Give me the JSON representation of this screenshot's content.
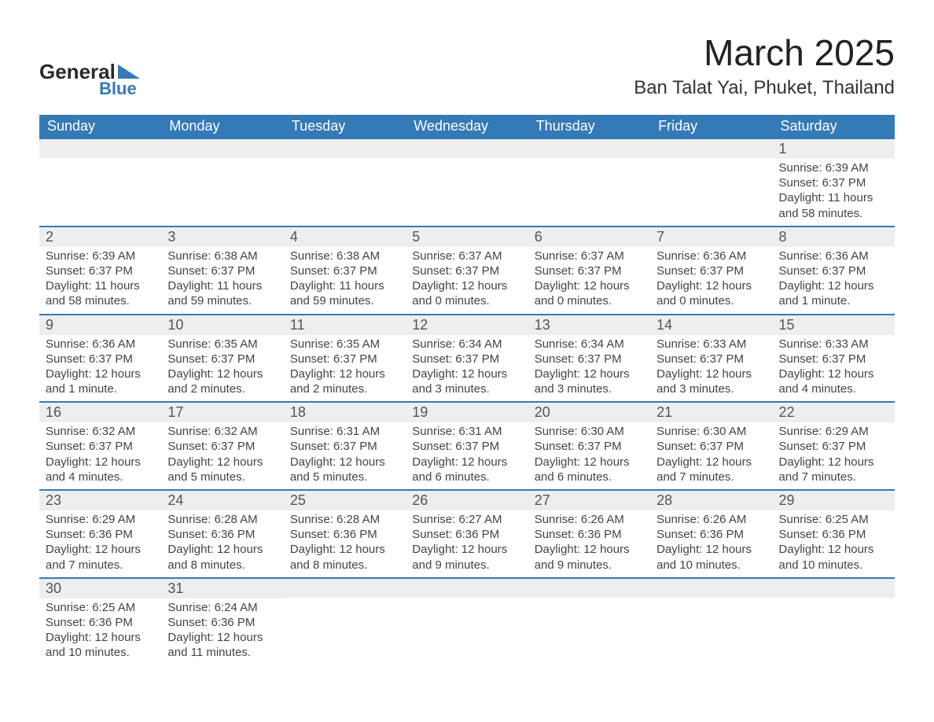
{
  "logo": {
    "top_text": "General",
    "bottom_text": "Blue"
  },
  "title": "March 2025",
  "location": "Ban Talat Yai, Phuket, Thailand",
  "colors": {
    "header_blue": "#347ab7",
    "row_divider": "#347ab7",
    "daynum_bg": "#eeeeee",
    "text": "#444444",
    "logo_dark": "#2a2a2a"
  },
  "font": {
    "family": "Arial",
    "title_size_pt": 34,
    "location_size_pt": 18,
    "header_size_pt": 14,
    "body_size_pt": 11
  },
  "day_headers": [
    "Sunday",
    "Monday",
    "Tuesday",
    "Wednesday",
    "Thursday",
    "Friday",
    "Saturday"
  ],
  "weeks": [
    [
      {
        "n": "",
        "sunrise": "",
        "sunset": "",
        "daylight": ""
      },
      {
        "n": "",
        "sunrise": "",
        "sunset": "",
        "daylight": ""
      },
      {
        "n": "",
        "sunrise": "",
        "sunset": "",
        "daylight": ""
      },
      {
        "n": "",
        "sunrise": "",
        "sunset": "",
        "daylight": ""
      },
      {
        "n": "",
        "sunrise": "",
        "sunset": "",
        "daylight": ""
      },
      {
        "n": "",
        "sunrise": "",
        "sunset": "",
        "daylight": ""
      },
      {
        "n": "1",
        "sunrise": "6:39 AM",
        "sunset": "6:37 PM",
        "daylight": "11 hours and 58 minutes."
      }
    ],
    [
      {
        "n": "2",
        "sunrise": "6:39 AM",
        "sunset": "6:37 PM",
        "daylight": "11 hours and 58 minutes."
      },
      {
        "n": "3",
        "sunrise": "6:38 AM",
        "sunset": "6:37 PM",
        "daylight": "11 hours and 59 minutes."
      },
      {
        "n": "4",
        "sunrise": "6:38 AM",
        "sunset": "6:37 PM",
        "daylight": "11 hours and 59 minutes."
      },
      {
        "n": "5",
        "sunrise": "6:37 AM",
        "sunset": "6:37 PM",
        "daylight": "12 hours and 0 minutes."
      },
      {
        "n": "6",
        "sunrise": "6:37 AM",
        "sunset": "6:37 PM",
        "daylight": "12 hours and 0 minutes."
      },
      {
        "n": "7",
        "sunrise": "6:36 AM",
        "sunset": "6:37 PM",
        "daylight": "12 hours and 0 minutes."
      },
      {
        "n": "8",
        "sunrise": "6:36 AM",
        "sunset": "6:37 PM",
        "daylight": "12 hours and 1 minute."
      }
    ],
    [
      {
        "n": "9",
        "sunrise": "6:36 AM",
        "sunset": "6:37 PM",
        "daylight": "12 hours and 1 minute."
      },
      {
        "n": "10",
        "sunrise": "6:35 AM",
        "sunset": "6:37 PM",
        "daylight": "12 hours and 2 minutes."
      },
      {
        "n": "11",
        "sunrise": "6:35 AM",
        "sunset": "6:37 PM",
        "daylight": "12 hours and 2 minutes."
      },
      {
        "n": "12",
        "sunrise": "6:34 AM",
        "sunset": "6:37 PM",
        "daylight": "12 hours and 3 minutes."
      },
      {
        "n": "13",
        "sunrise": "6:34 AM",
        "sunset": "6:37 PM",
        "daylight": "12 hours and 3 minutes."
      },
      {
        "n": "14",
        "sunrise": "6:33 AM",
        "sunset": "6:37 PM",
        "daylight": "12 hours and 3 minutes."
      },
      {
        "n": "15",
        "sunrise": "6:33 AM",
        "sunset": "6:37 PM",
        "daylight": "12 hours and 4 minutes."
      }
    ],
    [
      {
        "n": "16",
        "sunrise": "6:32 AM",
        "sunset": "6:37 PM",
        "daylight": "12 hours and 4 minutes."
      },
      {
        "n": "17",
        "sunrise": "6:32 AM",
        "sunset": "6:37 PM",
        "daylight": "12 hours and 5 minutes."
      },
      {
        "n": "18",
        "sunrise": "6:31 AM",
        "sunset": "6:37 PM",
        "daylight": "12 hours and 5 minutes."
      },
      {
        "n": "19",
        "sunrise": "6:31 AM",
        "sunset": "6:37 PM",
        "daylight": "12 hours and 6 minutes."
      },
      {
        "n": "20",
        "sunrise": "6:30 AM",
        "sunset": "6:37 PM",
        "daylight": "12 hours and 6 minutes."
      },
      {
        "n": "21",
        "sunrise": "6:30 AM",
        "sunset": "6:37 PM",
        "daylight": "12 hours and 7 minutes."
      },
      {
        "n": "22",
        "sunrise": "6:29 AM",
        "sunset": "6:37 PM",
        "daylight": "12 hours and 7 minutes."
      }
    ],
    [
      {
        "n": "23",
        "sunrise": "6:29 AM",
        "sunset": "6:36 PM",
        "daylight": "12 hours and 7 minutes."
      },
      {
        "n": "24",
        "sunrise": "6:28 AM",
        "sunset": "6:36 PM",
        "daylight": "12 hours and 8 minutes."
      },
      {
        "n": "25",
        "sunrise": "6:28 AM",
        "sunset": "6:36 PM",
        "daylight": "12 hours and 8 minutes."
      },
      {
        "n": "26",
        "sunrise": "6:27 AM",
        "sunset": "6:36 PM",
        "daylight": "12 hours and 9 minutes."
      },
      {
        "n": "27",
        "sunrise": "6:26 AM",
        "sunset": "6:36 PM",
        "daylight": "12 hours and 9 minutes."
      },
      {
        "n": "28",
        "sunrise": "6:26 AM",
        "sunset": "6:36 PM",
        "daylight": "12 hours and 10 minutes."
      },
      {
        "n": "29",
        "sunrise": "6:25 AM",
        "sunset": "6:36 PM",
        "daylight": "12 hours and 10 minutes."
      }
    ],
    [
      {
        "n": "30",
        "sunrise": "6:25 AM",
        "sunset": "6:36 PM",
        "daylight": "12 hours and 10 minutes."
      },
      {
        "n": "31",
        "sunrise": "6:24 AM",
        "sunset": "6:36 PM",
        "daylight": "12 hours and 11 minutes."
      },
      {
        "n": "",
        "sunrise": "",
        "sunset": "",
        "daylight": ""
      },
      {
        "n": "",
        "sunrise": "",
        "sunset": "",
        "daylight": ""
      },
      {
        "n": "",
        "sunrise": "",
        "sunset": "",
        "daylight": ""
      },
      {
        "n": "",
        "sunrise": "",
        "sunset": "",
        "daylight": ""
      },
      {
        "n": "",
        "sunrise": "",
        "sunset": "",
        "daylight": ""
      }
    ]
  ],
  "labels": {
    "sunrise": "Sunrise:",
    "sunset": "Sunset:",
    "daylight": "Daylight:"
  }
}
